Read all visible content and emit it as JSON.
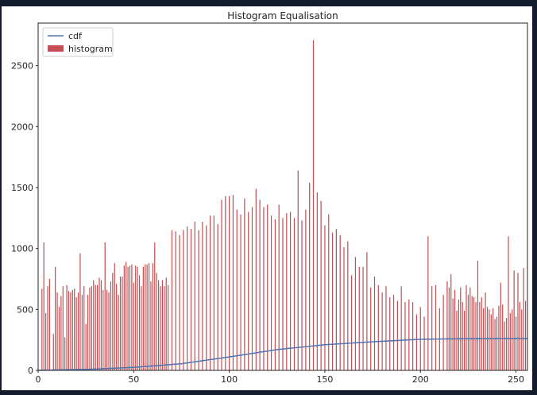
{
  "chart_data": {
    "type": "bar",
    "title": "Histogram Equalisation",
    "xlabel": "",
    "ylabel": "",
    "xlim": [
      0,
      256
    ],
    "ylim": [
      0,
      2850
    ],
    "xticks": [
      "0",
      "50",
      "100",
      "150",
      "200",
      "250"
    ],
    "yticks": [
      "0",
      "500",
      "1000",
      "1500",
      "2000",
      "2500"
    ],
    "grid": false,
    "legend_position": "top-left",
    "series": [
      {
        "name": "cdf",
        "kind": "line",
        "color": "#4c72b0",
        "points": [
          [
            0,
            0
          ],
          [
            25,
            8
          ],
          [
            50,
            25
          ],
          [
            75,
            55
          ],
          [
            100,
            110
          ],
          [
            125,
            170
          ],
          [
            150,
            210
          ],
          [
            175,
            235
          ],
          [
            200,
            255
          ],
          [
            225,
            260
          ],
          [
            256,
            262
          ]
        ]
      },
      {
        "name": "histogram",
        "kind": "bar",
        "color": "#c44e52",
        "x": [
          2,
          3,
          4,
          5,
          6,
          8,
          9,
          10,
          11,
          12,
          13,
          14,
          15,
          16,
          17,
          18,
          19,
          20,
          21,
          22,
          23,
          24,
          25,
          26,
          27,
          28,
          29,
          30,
          31,
          32,
          33,
          34,
          35,
          36,
          37,
          38,
          39,
          40,
          41,
          42,
          43,
          44,
          45,
          46,
          47,
          48,
          49,
          50,
          51,
          52,
          53,
          54,
          55,
          56,
          57,
          58,
          59,
          60,
          61,
          62,
          63,
          64,
          65,
          66,
          67,
          68,
          70,
          72,
          74,
          76,
          78,
          80,
          82,
          84,
          86,
          88,
          90,
          92,
          94,
          96,
          98,
          100,
          102,
          104,
          106,
          108,
          110,
          112,
          114,
          116,
          118,
          120,
          122,
          124,
          126,
          128,
          130,
          132,
          134,
          136,
          138,
          140,
          142,
          144,
          146,
          148,
          150,
          152,
          154,
          156,
          158,
          160,
          162,
          164,
          166,
          168,
          170,
          172,
          174,
          176,
          178,
          180,
          182,
          184,
          186,
          188,
          190,
          192,
          194,
          196,
          198,
          200,
          202,
          204,
          206,
          208,
          210,
          212,
          214,
          215,
          216,
          217,
          218,
          219,
          220,
          221,
          222,
          223,
          224,
          225,
          226,
          227,
          228,
          229,
          230,
          231,
          232,
          233,
          234,
          235,
          236,
          237,
          238,
          239,
          240,
          241,
          242,
          243,
          244,
          245,
          246,
          247,
          248,
          249,
          250,
          251,
          252,
          253,
          254,
          255
        ],
        "values": [
          670,
          1050,
          470,
          690,
          750,
          300,
          850,
          640,
          520,
          610,
          690,
          270,
          700,
          650,
          640,
          660,
          670,
          600,
          640,
          960,
          620,
          690,
          380,
          620,
          680,
          690,
          740,
          700,
          700,
          760,
          740,
          660,
          1050,
          660,
          640,
          730,
          800,
          880,
          710,
          620,
          770,
          770,
          860,
          890,
          850,
          860,
          870,
          720,
          860,
          850,
          780,
          690,
          850,
          870,
          870,
          880,
          730,
          880,
          1050,
          800,
          740,
          690,
          740,
          690,
          760,
          700,
          1150,
          1140,
          1110,
          1150,
          1180,
          1160,
          1220,
          1150,
          1220,
          1190,
          1270,
          1270,
          1200,
          1400,
          1430,
          1430,
          1440,
          1320,
          1280,
          1410,
          1300,
          1340,
          1490,
          1400,
          1340,
          1360,
          1270,
          1240,
          1360,
          1250,
          1290,
          1300,
          1250,
          1640,
          1230,
          1320,
          1540,
          2710,
          1460,
          1390,
          1190,
          1280,
          1130,
          1160,
          1110,
          1010,
          1060,
          780,
          930,
          850,
          850,
          970,
          680,
          770,
          700,
          640,
          690,
          600,
          620,
          570,
          690,
          560,
          580,
          560,
          460,
          520,
          440,
          1100,
          690,
          700,
          510,
          620,
          730,
          680,
          790,
          590,
          660,
          490,
          580,
          680,
          560,
          490,
          700,
          620,
          680,
          610,
          600,
          560,
          900,
          560,
          600,
          510,
          640,
          520,
          500,
          460,
          510,
          420,
          440,
          530,
          720,
          540,
          400,
          430,
          1100,
          470,
          500,
          820,
          440,
          800,
          560,
          500,
          840,
          570
        ]
      }
    ]
  }
}
